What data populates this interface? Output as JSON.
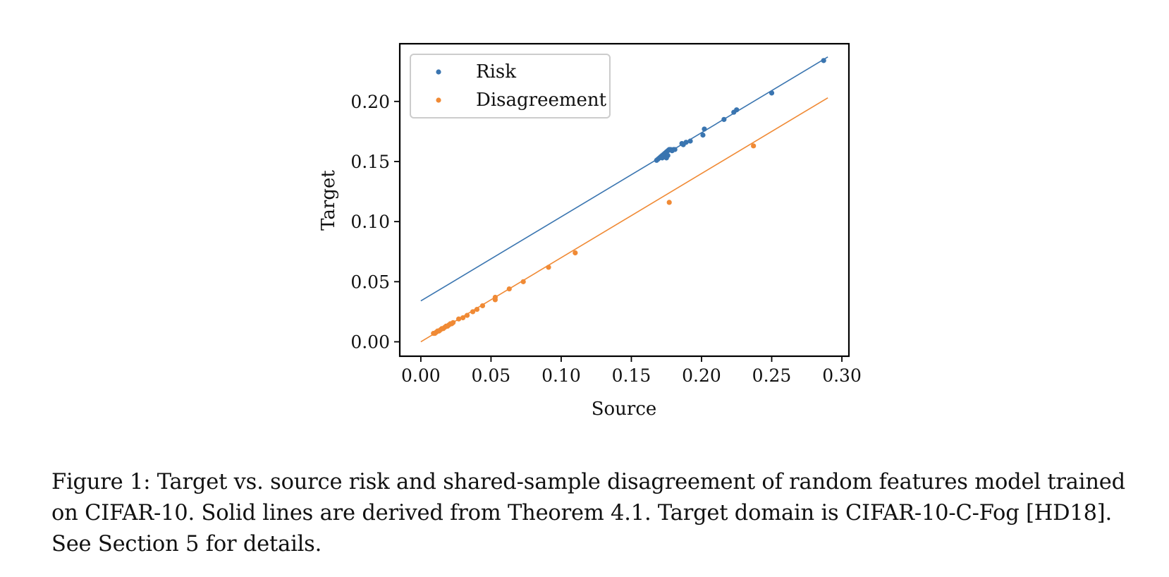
{
  "chart_data": {
    "type": "scatter",
    "xlabel": "Source",
    "ylabel": "Target",
    "xlim": [
      -0.015,
      0.305
    ],
    "ylim": [
      -0.012,
      0.248
    ],
    "xticks": [
      0.0,
      0.05,
      0.1,
      0.15,
      0.2,
      0.25,
      0.3
    ],
    "xtick_labels": [
      "0.00",
      "0.05",
      "0.10",
      "0.15",
      "0.20",
      "0.25",
      "0.30"
    ],
    "yticks": [
      0.0,
      0.05,
      0.1,
      0.15,
      0.2
    ],
    "ytick_labels": [
      "0.00",
      "0.05",
      "0.10",
      "0.15",
      "0.20"
    ],
    "grid": false,
    "legend_position": "top-left",
    "series": [
      {
        "name": "Risk",
        "color": "#3a75b0",
        "points": [
          [
            0.168,
            0.151
          ],
          [
            0.169,
            0.152
          ],
          [
            0.17,
            0.153
          ],
          [
            0.171,
            0.154
          ],
          [
            0.172,
            0.155
          ],
          [
            0.173,
            0.156
          ],
          [
            0.174,
            0.157
          ],
          [
            0.175,
            0.158
          ],
          [
            0.176,
            0.159
          ],
          [
            0.177,
            0.16
          ],
          [
            0.178,
            0.16
          ],
          [
            0.179,
            0.159
          ],
          [
            0.18,
            0.16
          ],
          [
            0.181,
            0.16
          ],
          [
            0.172,
            0.153
          ],
          [
            0.175,
            0.153
          ],
          [
            0.176,
            0.155
          ],
          [
            0.186,
            0.165
          ],
          [
            0.187,
            0.164
          ],
          [
            0.189,
            0.166
          ],
          [
            0.192,
            0.167
          ],
          [
            0.201,
            0.172
          ],
          [
            0.202,
            0.177
          ],
          [
            0.216,
            0.185
          ],
          [
            0.223,
            0.191
          ],
          [
            0.225,
            0.193
          ],
          [
            0.25,
            0.207
          ],
          [
            0.287,
            0.234
          ]
        ],
        "fit_line": [
          [
            0.0,
            0.034
          ],
          [
            0.29,
            0.237
          ]
        ]
      },
      {
        "name": "Disagreement",
        "color": "#f08a35",
        "points": [
          [
            0.009,
            0.007
          ],
          [
            0.01,
            0.007
          ],
          [
            0.011,
            0.008
          ],
          [
            0.012,
            0.009
          ],
          [
            0.013,
            0.009
          ],
          [
            0.014,
            0.01
          ],
          [
            0.015,
            0.011
          ],
          [
            0.016,
            0.011
          ],
          [
            0.017,
            0.012
          ],
          [
            0.018,
            0.013
          ],
          [
            0.019,
            0.013
          ],
          [
            0.02,
            0.014
          ],
          [
            0.021,
            0.015
          ],
          [
            0.022,
            0.015
          ],
          [
            0.023,
            0.016
          ],
          [
            0.027,
            0.019
          ],
          [
            0.03,
            0.02
          ],
          [
            0.033,
            0.022
          ],
          [
            0.037,
            0.025
          ],
          [
            0.04,
            0.027
          ],
          [
            0.044,
            0.03
          ],
          [
            0.053,
            0.035
          ],
          [
            0.053,
            0.037
          ],
          [
            0.063,
            0.044
          ],
          [
            0.073,
            0.05
          ],
          [
            0.091,
            0.062
          ],
          [
            0.11,
            0.074
          ],
          [
            0.177,
            0.116
          ],
          [
            0.237,
            0.163
          ]
        ],
        "fit_line": [
          [
            0.0,
            0.0
          ],
          [
            0.29,
            0.203
          ]
        ]
      }
    ]
  },
  "caption": "Figure 1: Target vs. source risk and shared-sample disagreement of random features model trained on CIFAR-10. Solid lines are derived from Theorem 4.1. Target domain is CIFAR-10-C-Fog [HD18]. See Section 5 for details."
}
